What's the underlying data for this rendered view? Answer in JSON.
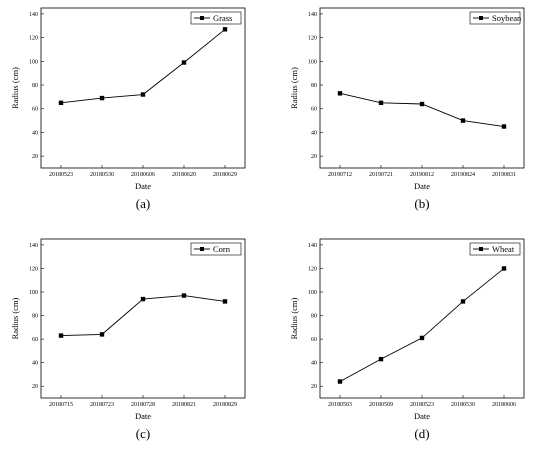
{
  "chart_data": [
    {
      "type": "line",
      "panel_label": "(a)",
      "categories": [
        "20180523",
        "20180530",
        "20180606",
        "20180620",
        "20180629"
      ],
      "series": [
        {
          "name": "Grass",
          "values": [
            65,
            69,
            72,
            99,
            127
          ]
        }
      ],
      "xlabel": "Date",
      "ylabel": "Radius (cm)",
      "ylim": [
        10,
        145
      ],
      "yticks": [
        20,
        40,
        60,
        80,
        100,
        120,
        140
      ],
      "grid": false,
      "legend_position": "top-right",
      "marker": "square"
    },
    {
      "type": "line",
      "panel_label": "(b)",
      "categories": [
        "20190712",
        "20190721",
        "20190812",
        "20190824",
        "20190831"
      ],
      "series": [
        {
          "name": "Soybean",
          "values": [
            73,
            65,
            64,
            50,
            45
          ]
        }
      ],
      "xlabel": "Date",
      "ylabel": "Radius (cm)",
      "ylim": [
        10,
        145
      ],
      "yticks": [
        20,
        40,
        60,
        80,
        100,
        120,
        140
      ],
      "grid": false,
      "legend_position": "top-right",
      "marker": "square"
    },
    {
      "type": "line",
      "panel_label": "(c)",
      "categories": [
        "20180715",
        "20180723",
        "20180728",
        "20180821",
        "20180829"
      ],
      "series": [
        {
          "name": "Corn",
          "values": [
            63,
            64,
            94,
            97,
            92
          ]
        }
      ],
      "xlabel": "Date",
      "ylabel": "Radius (cm)",
      "ylim": [
        10,
        145
      ],
      "yticks": [
        20,
        40,
        60,
        80,
        100,
        120,
        140
      ],
      "grid": false,
      "legend_position": "top-right",
      "marker": "square"
    },
    {
      "type": "line",
      "panel_label": "(d)",
      "categories": [
        "20180503",
        "20180509",
        "20180523",
        "20180530",
        "20180606"
      ],
      "series": [
        {
          "name": "Wheat",
          "values": [
            24,
            43,
            61,
            92,
            120
          ]
        }
      ],
      "xlabel": "Date",
      "ylabel": "Radius (cm)",
      "ylim": [
        10,
        145
      ],
      "yticks": [
        20,
        40,
        60,
        80,
        100,
        120,
        140
      ],
      "grid": false,
      "legend_position": "top-right",
      "marker": "square"
    }
  ]
}
